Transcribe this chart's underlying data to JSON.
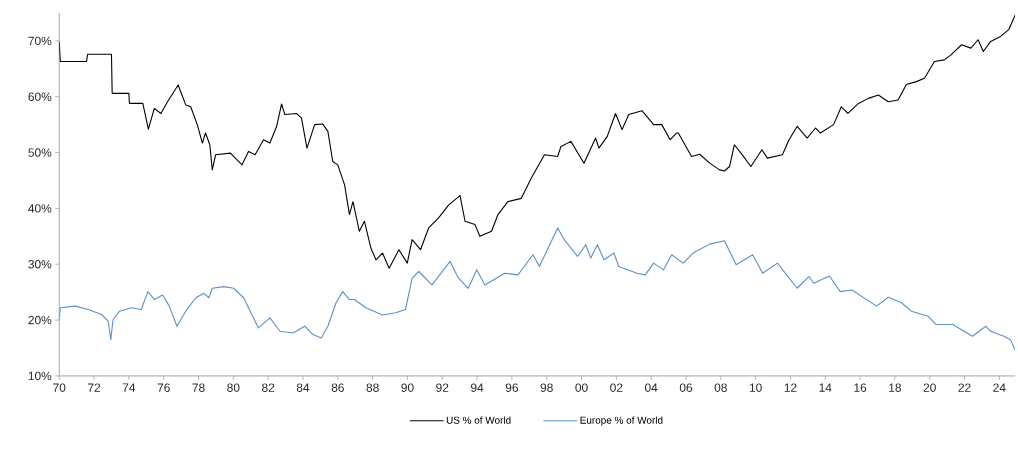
{
  "chart_data": {
    "type": "line",
    "xlim": [
      1970,
      2024.9
    ],
    "ylim": [
      10,
      75
    ],
    "xticks": [
      {
        "value": 1970,
        "label": "70"
      },
      {
        "value": 1972,
        "label": "72"
      },
      {
        "value": 1974,
        "label": "74"
      },
      {
        "value": 1976,
        "label": "76"
      },
      {
        "value": 1978,
        "label": "78"
      },
      {
        "value": 1980,
        "label": "80"
      },
      {
        "value": 1982,
        "label": "82"
      },
      {
        "value": 1984,
        "label": "84"
      },
      {
        "value": 1986,
        "label": "86"
      },
      {
        "value": 1988,
        "label": "88"
      },
      {
        "value": 1990,
        "label": "90"
      },
      {
        "value": 1992,
        "label": "92"
      },
      {
        "value": 1994,
        "label": "94"
      },
      {
        "value": 1996,
        "label": "96"
      },
      {
        "value": 1998,
        "label": "98"
      },
      {
        "value": 2000,
        "label": "00"
      },
      {
        "value": 2002,
        "label": "02"
      },
      {
        "value": 2004,
        "label": "04"
      },
      {
        "value": 2006,
        "label": "06"
      },
      {
        "value": 2008,
        "label": "08"
      },
      {
        "value": 2010,
        "label": "10"
      },
      {
        "value": 2012,
        "label": "12"
      },
      {
        "value": 2014,
        "label": "14"
      },
      {
        "value": 2016,
        "label": "16"
      },
      {
        "value": 2018,
        "label": "18"
      },
      {
        "value": 2020,
        "label": "20"
      },
      {
        "value": 2022,
        "label": "22"
      },
      {
        "value": 2024,
        "label": "24"
      }
    ],
    "yticks": [
      {
        "value": 10,
        "label": "10%"
      },
      {
        "value": 20,
        "label": "20%"
      },
      {
        "value": 30,
        "label": "30%"
      },
      {
        "value": 40,
        "label": "40%"
      },
      {
        "value": 50,
        "label": "50%"
      },
      {
        "value": 60,
        "label": "60%"
      },
      {
        "value": 70,
        "label": "70%"
      }
    ],
    "legend": "bottom",
    "marker": "none",
    "line_style": "solid",
    "series": [
      {
        "name": "US % of World",
        "color": "#000000",
        "x": [
          1970.0,
          1970.06,
          1971.57,
          1971.63,
          1973.0,
          1973.04,
          1974.0,
          1974.03,
          1974.8,
          1975.12,
          1975.46,
          1975.84,
          1976.22,
          1976.83,
          1977.27,
          1977.55,
          1977.93,
          1978.22,
          1978.4,
          1978.65,
          1978.79,
          1978.98,
          1979.83,
          1980.5,
          1980.87,
          1981.25,
          1981.73,
          1982.1,
          1982.49,
          1982.77,
          1982.96,
          1983.62,
          1983.91,
          1984.23,
          1984.67,
          1985.14,
          1985.43,
          1985.71,
          1986.0,
          1986.39,
          1986.67,
          1986.87,
          1987.24,
          1987.53,
          1987.9,
          1988.19,
          1988.57,
          1988.95,
          1989.51,
          1989.99,
          1990.27,
          1990.75,
          1991.22,
          1991.79,
          1992.36,
          1993.02,
          1993.31,
          1993.88,
          1994.16,
          1994.83,
          1995.2,
          1995.77,
          1996.54,
          1997.11,
          1997.87,
          1998.63,
          1998.82,
          1999.39,
          2000.14,
          2000.81,
          2001.0,
          2001.48,
          2001.95,
          2002.33,
          2002.71,
          2003.47,
          2004.14,
          2004.61,
          2005.09,
          2005.46,
          2005.56,
          2006.32,
          2006.79,
          2007.36,
          2007.93,
          2008.21,
          2008.5,
          2008.78,
          2009.16,
          2009.73,
          2010.36,
          2010.68,
          2011.54,
          2011.92,
          2012.39,
          2012.96,
          2013.44,
          2013.72,
          2014.48,
          2014.92,
          2015.3,
          2015.91,
          2016.48,
          2017.05,
          2017.62,
          2018.18,
          2018.66,
          2019.23,
          2019.7,
          2020.27,
          2020.84,
          2021.22,
          2021.83,
          2022.36,
          2022.78,
          2023.08,
          2023.5,
          2024.07,
          2024.54,
          2024.9
        ],
        "values": [
          69.9,
          66.3,
          66.3,
          67.6,
          67.6,
          60.6,
          60.6,
          58.8,
          58.8,
          54.2,
          57.9,
          57.0,
          59.1,
          62.1,
          58.5,
          58.2,
          55.0,
          51.7,
          53.5,
          51.4,
          46.9,
          49.6,
          49.9,
          47.8,
          50.2,
          49.6,
          52.3,
          51.7,
          54.7,
          58.7,
          56.8,
          57.0,
          56.2,
          50.8,
          55.0,
          55.1,
          53.8,
          48.4,
          47.8,
          44.2,
          38.9,
          41.2,
          35.9,
          37.7,
          32.9,
          30.8,
          32.0,
          29.3,
          32.6,
          30.2,
          34.4,
          32.6,
          36.5,
          38.3,
          40.6,
          42.3,
          37.7,
          37.1,
          35.0,
          35.9,
          38.9,
          41.2,
          41.8,
          45.4,
          49.6,
          49.3,
          51.1,
          52.0,
          48.1,
          52.6,
          50.8,
          52.9,
          57.0,
          54.1,
          56.8,
          57.5,
          55.0,
          55.0,
          52.3,
          53.5,
          53.5,
          49.3,
          49.7,
          48.1,
          46.9,
          46.7,
          47.5,
          51.4,
          49.9,
          47.5,
          50.5,
          49.0,
          49.6,
          52.3,
          54.7,
          52.6,
          54.4,
          53.5,
          55.0,
          58.2,
          57.0,
          58.8,
          59.7,
          60.3,
          59.1,
          59.4,
          62.2,
          62.7,
          63.3,
          66.3,
          66.6,
          67.5,
          69.3,
          68.7,
          70.2,
          68.1,
          69.9,
          70.8,
          72.0,
          74.6
        ]
      },
      {
        "name": "Europe % of World",
        "color": "#5b8fc7",
        "x": [
          1970.0,
          1970.06,
          1970.91,
          1971.67,
          1972.43,
          1972.81,
          1972.96,
          1973.09,
          1973.47,
          1974.14,
          1974.71,
          1975.09,
          1975.46,
          1975.94,
          1976.32,
          1976.76,
          1977.27,
          1977.84,
          1978.31,
          1978.6,
          1978.79,
          1979.45,
          1980.02,
          1980.59,
          1981.44,
          1982.1,
          1982.68,
          1983.43,
          1984.1,
          1984.57,
          1985.05,
          1985.43,
          1985.9,
          1986.28,
          1986.66,
          1986.95,
          1987.62,
          1988.57,
          1989.33,
          1989.89,
          1990.27,
          1990.65,
          1991.41,
          1992.45,
          1992.93,
          1993.5,
          1993.98,
          1994.45,
          1995.59,
          1996.35,
          1997.21,
          1997.58,
          1998.63,
          1999.01,
          1999.77,
          2000.24,
          2000.53,
          2000.91,
          2001.29,
          2001.86,
          2002.14,
          2003.19,
          2003.66,
          2004.14,
          2004.71,
          2005.18,
          2005.84,
          2006.41,
          2007.36,
          2008.21,
          2008.88,
          2009.83,
          2010.4,
          2011.25,
          2012.39,
          2013.06,
          2013.34,
          2014.24,
          2014.86,
          2015.53,
          2016.95,
          2017.62,
          2018.38,
          2018.95,
          2019.9,
          2020.37,
          2021.32,
          2022.46,
          2023.22,
          2023.5,
          2024.26,
          2024.64,
          2024.9
        ],
        "values": [
          20.1,
          22.2,
          22.5,
          21.9,
          21.0,
          19.8,
          16.5,
          20.1,
          21.6,
          22.2,
          21.9,
          25.1,
          23.7,
          24.5,
          22.5,
          18.9,
          21.6,
          24.0,
          24.8,
          24.0,
          25.7,
          26.0,
          25.7,
          24.0,
          18.6,
          20.4,
          18.0,
          17.7,
          18.9,
          17.4,
          16.8,
          18.9,
          23.1,
          25.1,
          23.7,
          23.7,
          22.2,
          20.9,
          21.3,
          21.9,
          27.5,
          28.7,
          26.3,
          30.5,
          27.5,
          25.7,
          29.0,
          26.3,
          28.4,
          28.1,
          31.7,
          29.6,
          36.5,
          34.4,
          31.4,
          33.5,
          31.1,
          33.5,
          30.8,
          32.0,
          29.6,
          28.4,
          28.1,
          30.2,
          29.0,
          31.7,
          30.2,
          32.0,
          33.6,
          34.2,
          29.9,
          31.7,
          28.4,
          30.2,
          25.7,
          27.8,
          26.6,
          27.9,
          25.1,
          25.4,
          22.5,
          24.1,
          23.1,
          21.6,
          20.7,
          19.2,
          19.2,
          17.1,
          18.9,
          18.0,
          17.1,
          16.5,
          14.7
        ]
      }
    ]
  }
}
